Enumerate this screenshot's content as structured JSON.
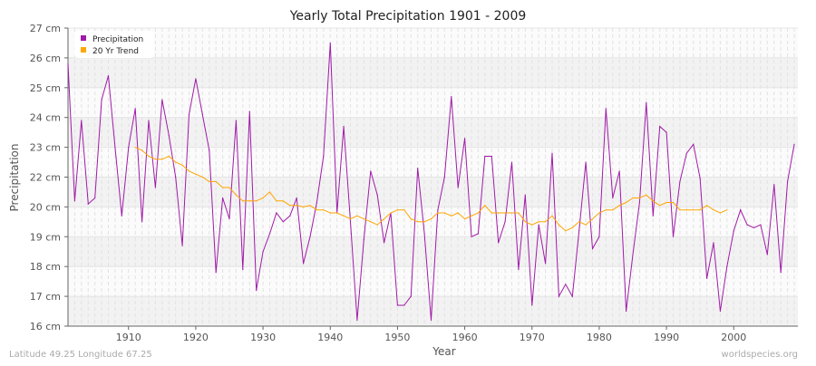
{
  "chart_data": {
    "type": "line",
    "title": "Yearly Total Precipitation 1901 - 2009",
    "xlabel": "Year",
    "ylabel": "Precipitation",
    "xlim": [
      1901,
      2009
    ],
    "x_ticks": [
      1910,
      1920,
      1930,
      1940,
      1950,
      1960,
      1970,
      1980,
      1990,
      2000
    ],
    "y_ticks": [
      {
        "value": 27,
        "label": "27 cm"
      },
      {
        "value": 26,
        "label": "26 cm"
      },
      {
        "value": 25,
        "label": "25 cm"
      },
      {
        "value": 24,
        "label": "24 cm"
      },
      {
        "value": 23,
        "label": "23 cm"
      },
      {
        "value": 22,
        "label": "22 cm"
      },
      {
        "value": 20,
        "label": "20 cm"
      },
      {
        "value": 19,
        "label": "19 cm"
      },
      {
        "value": 18,
        "label": "18 cm"
      },
      {
        "value": 17,
        "label": "17 cm"
      },
      {
        "value": 16,
        "label": "16 cm"
      }
    ],
    "grid": true,
    "legend_position": "top-left",
    "series": [
      {
        "name": "Precipitation",
        "color": "#a01aa8",
        "x_start": 1901,
        "values": [
          25.8,
          20.4,
          23.9,
          20.2,
          20.6,
          24.6,
          25.4,
          23.0,
          19.7,
          23.0,
          24.3,
          19.5,
          23.9,
          21.3,
          24.6,
          23.4,
          22.0,
          18.7,
          24.1,
          25.3,
          24.1,
          22.9,
          17.8,
          20.6,
          19.6,
          23.9,
          17.9,
          24.2,
          17.2,
          18.5,
          19.1,
          19.8,
          19.5,
          19.7,
          20.6,
          18.1,
          19.0,
          20.3,
          22.7,
          26.5,
          19.8,
          23.7,
          19.5,
          16.2,
          18.9,
          22.2,
          20.8,
          18.8,
          19.8,
          16.7,
          16.7,
          17.0,
          22.3,
          19.1,
          16.2,
          19.9,
          22.0,
          24.7,
          21.3,
          23.3,
          19.0,
          19.1,
          22.7,
          22.7,
          18.8,
          19.5,
          22.5,
          17.9,
          20.8,
          16.7,
          19.4,
          18.1,
          22.8,
          17.0,
          17.4,
          17.0,
          19.2,
          22.5,
          18.6,
          19.0,
          24.3,
          20.6,
          22.2,
          16.5,
          18.4,
          20.3,
          24.5,
          19.7,
          23.7,
          23.5,
          19.0,
          21.7,
          22.8,
          23.1,
          21.9,
          17.6,
          18.8,
          16.5,
          18.0,
          19.2,
          19.9,
          19.4,
          19.3,
          19.4,
          18.4,
          21.5,
          17.8,
          21.7,
          23.1
        ]
      },
      {
        "name": "20 Yr Trend",
        "color": "#ffa500",
        "x_start": 1911,
        "values": [
          23.0,
          22.9,
          22.7,
          22.6,
          22.6,
          22.7,
          22.5,
          22.4,
          22.2,
          22.1,
          22.0,
          21.7,
          21.7,
          21.3,
          21.3,
          20.8,
          20.4,
          20.4,
          20.4,
          20.6,
          21.0,
          20.4,
          20.4,
          20.1,
          20.1,
          20.0,
          20.1,
          19.9,
          19.9,
          19.8,
          19.8,
          19.7,
          19.6,
          19.7,
          19.6,
          19.5,
          19.4,
          19.6,
          19.8,
          19.9,
          19.9,
          19.6,
          19.5,
          19.5,
          19.6,
          19.8,
          19.8,
          19.7,
          19.8,
          19.6,
          19.7,
          19.8,
          20.1,
          19.8,
          19.8,
          19.8,
          19.8,
          19.8,
          19.5,
          19.4,
          19.5,
          19.5,
          19.7,
          19.4,
          19.2,
          19.3,
          19.5,
          19.4,
          19.6,
          19.8,
          19.9,
          19.9,
          20.1,
          20.3,
          20.6,
          20.6,
          20.8,
          20.4,
          20.1,
          20.3,
          20.3,
          19.9,
          19.9,
          19.9,
          19.9,
          20.1,
          19.9,
          19.8,
          19.9
        ]
      }
    ]
  },
  "footer": {
    "location": "Latitude 49.25 Longitude 67.25",
    "site": "worldspecies.org"
  }
}
